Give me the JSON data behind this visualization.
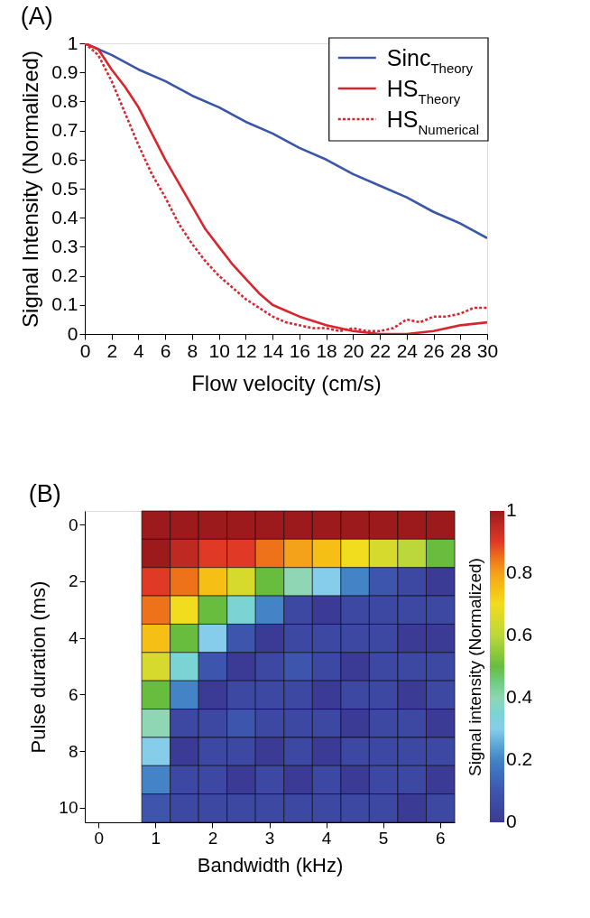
{
  "chart_data": [
    {
      "type": "line",
      "title": "(A)",
      "xlabel": "Flow velocity (cm/s)",
      "ylabel": "Signal Intensity (Normalized)",
      "xlim": [
        0,
        30
      ],
      "ylim": [
        0,
        1
      ],
      "xticks": [
        0,
        2,
        4,
        6,
        8,
        10,
        12,
        14,
        16,
        18,
        20,
        22,
        24,
        26,
        28,
        30
      ],
      "yticks": [
        0,
        0.1,
        0.2,
        0.3,
        0.4,
        0.5,
        0.6,
        0.7,
        0.8,
        0.9,
        1
      ],
      "legend": "top right",
      "line_style": "solid",
      "series": [
        {
          "name": "Sinc$_{Theory}$",
          "color": "#3a56a5",
          "x": [
            0,
            2,
            4,
            6,
            8,
            10,
            12,
            14,
            16,
            18,
            20,
            22,
            24,
            26,
            28,
            30
          ],
          "values": [
            1,
            0.96,
            0.91,
            0.87,
            0.82,
            0.78,
            0.73,
            0.69,
            0.64,
            0.6,
            0.55,
            0.51,
            0.47,
            0.42,
            0.38,
            0.33
          ]
        },
        {
          "name": "HS$_{Theory}$",
          "color": "#d9262e",
          "x": [
            0,
            1,
            2,
            3,
            4,
            5,
            6,
            7,
            8,
            9,
            10,
            11,
            12,
            13,
            14,
            15,
            16,
            18,
            20,
            22,
            24,
            26,
            28,
            30
          ],
          "values": [
            1,
            0.98,
            0.91,
            0.85,
            0.78,
            0.69,
            0.6,
            0.52,
            0.44,
            0.36,
            0.3,
            0.24,
            0.19,
            0.14,
            0.1,
            0.08,
            0.06,
            0.03,
            0.01,
            0,
            0,
            0.01,
            0.03,
            0.04
          ]
        },
        {
          "name": "HS$_{Numerical}$",
          "color": "#d9262e",
          "line_style": "dotted",
          "x": [
            0,
            1,
            2,
            3,
            4,
            5,
            6,
            7,
            8,
            9,
            10,
            11,
            12,
            13,
            14,
            15,
            16,
            17,
            18,
            19,
            20,
            21,
            22,
            23,
            24,
            25,
            26,
            27,
            28,
            29,
            30
          ],
          "values": [
            1,
            0.96,
            0.87,
            0.76,
            0.65,
            0.55,
            0.47,
            0.38,
            0.31,
            0.25,
            0.2,
            0.16,
            0.12,
            0.09,
            0.06,
            0.04,
            0.03,
            0.02,
            0.02,
            0.01,
            0.02,
            0.01,
            0.01,
            0.02,
            0.05,
            0.04,
            0.06,
            0.06,
            0.07,
            0.09,
            0.09
          ]
        }
      ]
    },
    {
      "type": "heatmap",
      "title": "(B)",
      "xlabel": "Bandwidth (kHz)",
      "ylabel": "Pulse duration (ms)",
      "clabel": "Signal intensity (Normalized)",
      "categories": [
        "0",
        null,
        "1",
        null,
        "2",
        null,
        "3",
        null,
        "4",
        null,
        "5",
        null,
        "6"
      ],
      "y_categories": [
        "0",
        null,
        "2",
        null,
        "4",
        null,
        "6",
        null,
        "8",
        null,
        "10"
      ],
      "cells": [
        [
          null,
          null,
          1,
          1,
          1,
          1,
          1,
          1,
          1,
          1,
          1,
          1,
          1
        ],
        [
          null,
          null,
          1,
          0.95,
          0.9,
          0.9,
          0.85,
          0.8,
          0.75,
          0.7,
          0.65,
          0.6,
          0.5
        ],
        [
          null,
          null,
          0.9,
          0.85,
          0.75,
          0.65,
          0.5,
          0.4,
          0.3,
          0.2,
          0.1,
          0.05,
          0
        ],
        [
          null,
          null,
          0.85,
          0.7,
          0.5,
          0.35,
          0.2,
          0.05,
          0,
          0.05,
          0.05,
          0.05,
          0.05
        ],
        [
          null,
          null,
          0.75,
          0.5,
          0.3,
          0.1,
          0,
          0.05,
          0.05,
          0.05,
          0.05,
          0,
          0
        ],
        [
          null,
          null,
          0.65,
          0.35,
          0.1,
          0,
          0.05,
          0.1,
          0.05,
          0,
          0.05,
          0.05,
          0.05
        ],
        [
          null,
          null,
          0.5,
          0.2,
          0,
          0.05,
          0.05,
          0.05,
          0,
          0.05,
          0.05,
          0,
          0.05
        ],
        [
          null,
          null,
          0.4,
          0.05,
          0.05,
          0.1,
          0.05,
          0.05,
          0.05,
          0,
          0.05,
          0.05,
          0
        ],
        [
          null,
          null,
          0.3,
          0,
          0.05,
          0.05,
          0,
          0.05,
          0,
          0.05,
          0.05,
          0.05,
          0.05
        ],
        [
          null,
          null,
          0.2,
          0.05,
          0.05,
          0,
          0.05,
          0,
          0.05,
          0,
          0.05,
          0.05,
          0
        ],
        [
          null,
          null,
          0.1,
          0.05,
          0.05,
          0.05,
          0.05,
          0.05,
          0.05,
          0.05,
          0.05,
          0,
          0.05
        ]
      ],
      "clim": [
        0,
        1
      ],
      "cticks": [
        0,
        0.2,
        0.4,
        0.6,
        0.8,
        1
      ]
    }
  ]
}
